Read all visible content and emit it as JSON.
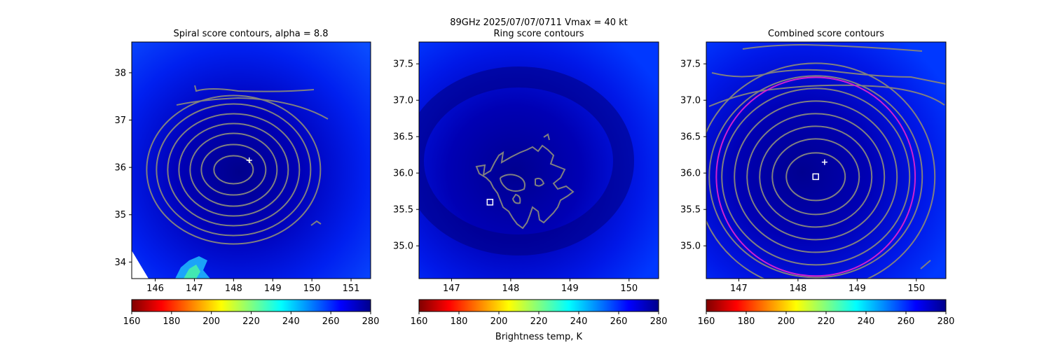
{
  "figure": {
    "suptitle_line1": "89GHz  2025/07/07/0711    Vmax = 40 kt",
    "colorbar_label": "Brightness temp, K",
    "colorbar_ticks": [
      "160",
      "180",
      "200",
      "220",
      "240",
      "260",
      "280"
    ],
    "colormap": [
      "#800000",
      "#ff0000",
      "#ff8000",
      "#ffff00",
      "#80ff80",
      "#00ffff",
      "#0080ff",
      "#0000ff",
      "#00008b"
    ],
    "contour_color": "#808080",
    "center_marker_color": "#ffffff",
    "ring_color": "#d020d0"
  },
  "chart_data": [
    {
      "type": "heatmap",
      "title": "Spiral score contours, alpha =  8.8",
      "xlim": [
        145.4,
        151.5
      ],
      "ylim": [
        33.65,
        38.65
      ],
      "xticks": [
        "146",
        "147",
        "148",
        "149",
        "150",
        "151"
      ],
      "yticks": [
        "34",
        "35",
        "36",
        "37",
        "38"
      ],
      "colorbar_range": [
        160,
        280
      ],
      "plus_marker": [
        148.4,
        36.15
      ],
      "contour_center": [
        148.0,
        35.95
      ]
    },
    {
      "type": "heatmap",
      "title": "Ring score contours",
      "xlim": [
        146.45,
        150.5
      ],
      "ylim": [
        34.55,
        37.8
      ],
      "xticks": [
        "147",
        "148",
        "149",
        "150"
      ],
      "yticks": [
        "35.0",
        "35.5",
        "36.0",
        "36.5",
        "37.0",
        "37.5"
      ],
      "colorbar_range": [
        160,
        280
      ],
      "square_marker": [
        147.65,
        35.6
      ]
    },
    {
      "type": "heatmap",
      "title": "Combined score contours",
      "xlim": [
        146.45,
        150.5
      ],
      "ylim": [
        34.55,
        37.8
      ],
      "xticks": [
        "147",
        "148",
        "149",
        "150"
      ],
      "yticks": [
        "35.0",
        "35.5",
        "36.0",
        "36.5",
        "37.0",
        "37.5"
      ],
      "colorbar_range": [
        160,
        280
      ],
      "plus_marker": [
        148.45,
        36.15
      ],
      "square_marker": [
        148.3,
        35.95
      ],
      "fitted_ring_center": [
        148.3,
        35.95
      ],
      "fitted_ring_radius_deg": 1.6
    }
  ]
}
